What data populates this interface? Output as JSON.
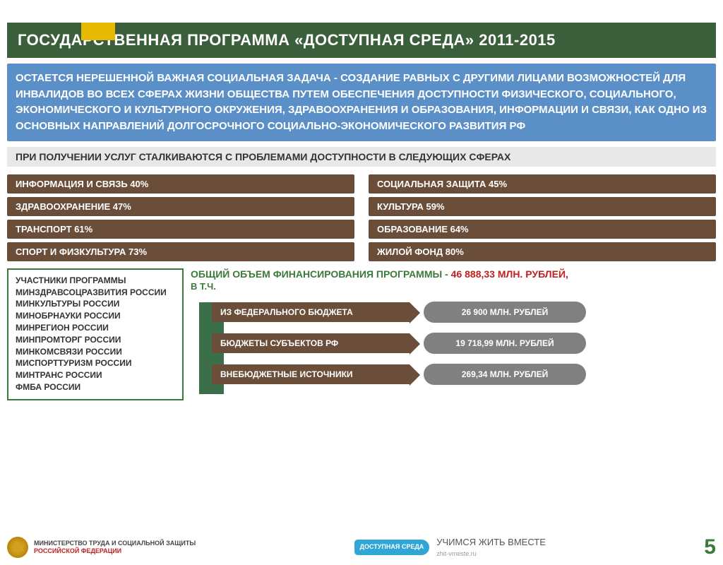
{
  "colors": {
    "title_bg": "#3a5f3a",
    "blue_bg": "#5a8fc7",
    "brown": "#6b4e3a",
    "green_border": "#3a7a3a",
    "gray_bar": "#e8e8e8",
    "pill": "#808080",
    "accent_yellow": "#e6b800"
  },
  "title": "ГОСУДАРСТВЕННАЯ ПРОГРАММА «ДОСТУПНАЯ СРЕДА» 2011-2015",
  "blue_text": "ОСТАЕТСЯ НЕРЕШЕННОЙ ВАЖНАЯ СОЦИАЛЬНАЯ ЗАДАЧА - СОЗДАНИЕ РАВНЫХ С ДРУГИМИ ЛИЦАМИ ВОЗМОЖНОСТЕЙ ДЛЯ ИНВАЛИДОВ ВО ВСЕХ СФЕРАХ ЖИЗНИ ОБЩЕСТВА ПУТЕМ ОБЕСПЕЧЕНИЯ ДОСТУПНОСТИ ФИЗИЧЕСКОГО, СОЦИАЛЬНОГО, ЭКОНОМИЧЕСКОГО И КУЛЬТУРНОГО ОКРУЖЕНИЯ, ЗДРАВООХРАНЕНИЯ И ОБРАЗОВАНИЯ, ИНФОРМАЦИИ И СВЯЗИ, КАК ОДНО ИЗ ОСНОВНЫХ НАПРАВЛЕНИЙ ДОЛГОСРОЧНОГО СОЦИАЛЬНО-ЭКОНОМИЧЕСКОГО  РАЗВИТИЯ  РФ",
  "gray_heading": "ПРИ ПОЛУЧЕНИИ УСЛУГ СТАЛКИВАЮТСЯ С ПРОБЛЕМАМИ ДОСТУПНОСТИ В СЛЕДУЮЩИХ СФЕРАХ",
  "left": [
    "ИНФОРМАЦИЯ И СВЯЗЬ 40%",
    "ЗДРАВООХРАНЕНИЕ 47%",
    "ТРАНСПОРТ 61%",
    "СПОРТ И ФИЗКУЛЬТУРА 73%"
  ],
  "right": [
    "СОЦИАЛЬНАЯ ЗАЩИТА 45%",
    "КУЛЬТУРА 59%",
    "ОБРАЗОВАНИЕ 64%",
    "ЖИЛОЙ ФОНД 80%"
  ],
  "participants_title": "УЧАСТНИКИ ПРОГРАММЫ",
  "participants": [
    "МИНЗДРАВСОЦРАЗВИТИЯ РОССИИ",
    "МИНКУЛЬТУРЫ РОССИИ",
    "МИНОБРНАУКИ РОССИИ",
    "МИНРЕГИОН РОССИИ",
    "МИНПРОМТОРГ РОССИИ",
    "МИНКОМСВЯЗИ РОССИИ",
    "МИСПОРТТУРИЗМ РОССИИ",
    "МИНТРАНС РОССИИ",
    "ФМБА РОССИИ"
  ],
  "funding": {
    "title_green": "ОБЩИЙ ОБЪЕМ ФИНАНСИРОВАНИЯ ПРОГРАММЫ -  ",
    "title_red": "46 888,33 МЛН. РУБЛЕЙ,",
    "sub": "В Т.Ч.",
    "rows": [
      {
        "label": "ИЗ ФЕДЕРАЛЬНОГО БЮДЖЕТА",
        "value": "26 900 МЛН. РУБЛЕЙ"
      },
      {
        "label": "БЮДЖЕТЫ СУБЪЕКТОВ РФ",
        "value": "19 718,99 МЛН. РУБЛЕЙ"
      },
      {
        "label": "ВНЕБЮДЖЕТНЫЕ ИСТОЧНИКИ",
        "value": "269,34 МЛН. РУБЛЕЙ"
      }
    ]
  },
  "footer": {
    "ministry1": "МИНИСТЕРСТВО ТРУДА И СОЦИАЛЬНОЙ ЗАЩИТЫ",
    "ministry2": "РОССИЙСКОЙ ФЕДЕРАЦИИ",
    "ds_badge": "ДОСТУПНАЯ СРЕДА",
    "learn": "УЧИМСЯ ЖИТЬ ВМЕСТЕ",
    "learn_sub": "zhit-vmeste.ru",
    "page_num": "5"
  }
}
